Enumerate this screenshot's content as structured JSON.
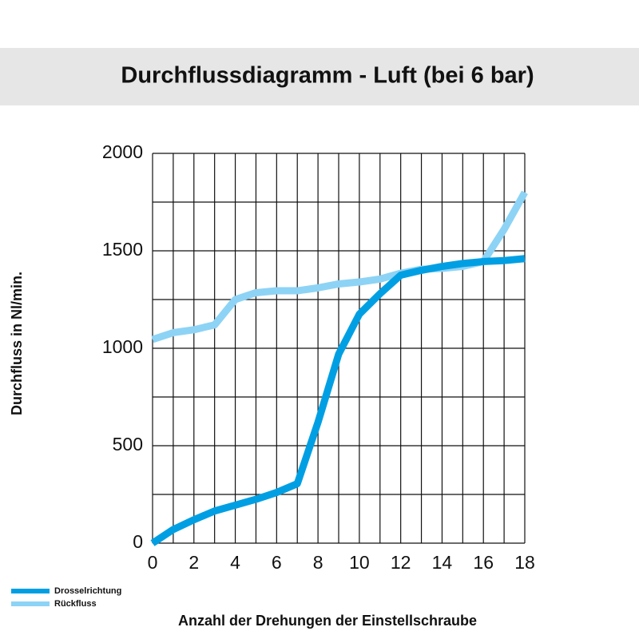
{
  "chart_data": {
    "type": "line",
    "title": "Durchflussdiagramm - Luft (bei 6 bar)",
    "x_label": "Anzahl der Drehungen der Einstellschraube",
    "y_label": "Durchfluss in Nl/min.",
    "x": [
      0,
      1,
      2,
      3,
      4,
      5,
      6,
      7,
      8,
      9,
      10,
      11,
      12,
      13,
      14,
      15,
      16,
      17,
      18
    ],
    "series": [
      {
        "name": "Drosselrichtung",
        "color": "#009fe3",
        "values": [
          0,
          70,
          120,
          165,
          195,
          225,
          260,
          305,
          620,
          970,
          1175,
          1280,
          1375,
          1400,
          1420,
          1435,
          1445,
          1450,
          1460
        ]
      },
      {
        "name": "Rückfluss",
        "color": "#8dd3f5",
        "values": [
          1045,
          1080,
          1095,
          1120,
          1250,
          1285,
          1295,
          1295,
          1310,
          1330,
          1340,
          1355,
          1385,
          1405,
          1410,
          1420,
          1445,
          1610,
          1800
        ]
      }
    ],
    "xlim": [
      0,
      18
    ],
    "ylim": [
      0,
      2000
    ],
    "xticks": [
      0,
      2,
      4,
      6,
      8,
      10,
      12,
      14,
      16,
      18
    ],
    "yticks": [
      0,
      500,
      1000,
      1500,
      2000
    ],
    "minor_xticks": [
      1,
      3,
      5,
      7,
      9,
      11,
      13,
      15,
      17
    ],
    "minor_yticks": [
      250,
      750,
      1250,
      1750
    ],
    "grid": true,
    "legend": "bottom-left"
  }
}
